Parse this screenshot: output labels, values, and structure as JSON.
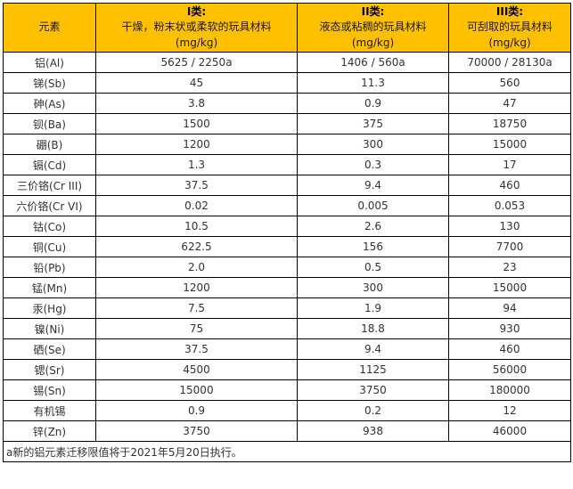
{
  "table": {
    "header": {
      "element_label": "元素",
      "classes": [
        {
          "title": "I类:",
          "desc": "干燥，粉末状或柔软的玩具材料",
          "unit": "(mg/kg)"
        },
        {
          "title": "II类:",
          "desc": "液态或粘稠的玩具材料",
          "unit": "(mg/kg)"
        },
        {
          "title": "III类:",
          "desc": "可刮取的玩具材料",
          "unit": "(mg/kg)"
        }
      ]
    },
    "rows": [
      {
        "element": "铝(Al)",
        "class1": "5625 / 2250a",
        "class2": "1406 / 560a",
        "class3": "70000 / 28130a"
      },
      {
        "element": "锑(Sb)",
        "class1": "45",
        "class2": "11.3",
        "class3": "560"
      },
      {
        "element": "砷(As)",
        "class1": "3.8",
        "class2": "0.9",
        "class3": "47"
      },
      {
        "element": "钡(Ba)",
        "class1": "1500",
        "class2": "375",
        "class3": "18750"
      },
      {
        "element": "硼(B)",
        "class1": "1200",
        "class2": "300",
        "class3": "15000"
      },
      {
        "element": "镉(Cd)",
        "class1": "1.3",
        "class2": "0.3",
        "class3": "17"
      },
      {
        "element": "三价铬(Cr III)",
        "class1": "37.5",
        "class2": "9.4",
        "class3": "460"
      },
      {
        "element": "六价铬(Cr VI)",
        "class1": "0.02",
        "class2": "0.005",
        "class3": "0.053"
      },
      {
        "element": "钴(Co)",
        "class1": "10.5",
        "class2": "2.6",
        "class3": "130"
      },
      {
        "element": "铜(Cu)",
        "class1": "622.5",
        "class2": "156",
        "class3": "7700"
      },
      {
        "element": "铅(Pb)",
        "class1": "2.0",
        "class2": "0.5",
        "class3": "23"
      },
      {
        "element": "锰(Mn)",
        "class1": "1200",
        "class2": "300",
        "class3": "15000"
      },
      {
        "element": "汞(Hg)",
        "class1": "7.5",
        "class2": "1.9",
        "class3": "94"
      },
      {
        "element": "镍(Ni)",
        "class1": "75",
        "class2": "18.8",
        "class3": "930"
      },
      {
        "element": "硒(Se)",
        "class1": "37.5",
        "class2": "9.4",
        "class3": "460"
      },
      {
        "element": "锶(Sr)",
        "class1": "4500",
        "class2": "1125",
        "class3": "56000"
      },
      {
        "element": "锡(Sn)",
        "class1": "15000",
        "class2": "3750",
        "class3": "180000"
      },
      {
        "element": "有机锡",
        "class1": "0.9",
        "class2": "0.2",
        "class3": "12"
      },
      {
        "element": "锌(Zn)",
        "class1": "3750",
        "class2": "938",
        "class3": "46000"
      }
    ],
    "footnote": "a新的铝元素迁移限值将于2021年5月20日执行。"
  },
  "colors": {
    "header_bg": "#FFC000",
    "border": "#000000",
    "text": "#333333"
  }
}
